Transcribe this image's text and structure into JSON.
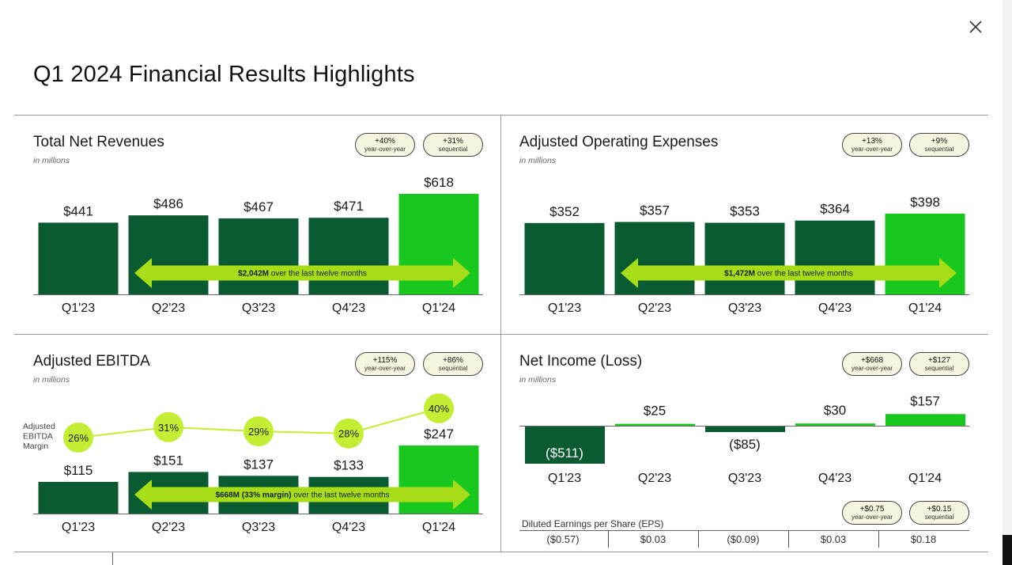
{
  "page": {
    "title": "Q1 2024 Financial Results Highlights",
    "close_icon": "close-icon"
  },
  "colors": {
    "dark_green": "#0a5a32",
    "bright_green": "#19c81e",
    "lime": "#a6dc18",
    "lime_bubble": "#c4ee34",
    "pill_bg": "#f5f6df"
  },
  "chart_data": [
    {
      "id": "revenue",
      "type": "bar",
      "title": "Total Net Revenues",
      "subtitle": "in millions",
      "categories": [
        "Q1'23",
        "Q2'23",
        "Q3'23",
        "Q4'23",
        "Q1'24"
      ],
      "values": [
        441,
        486,
        467,
        471,
        618
      ],
      "value_labels": [
        "$441",
        "$486",
        "$467",
        "$471",
        "$618"
      ],
      "ylim": [
        0,
        700
      ],
      "badges": [
        {
          "value": "+40%",
          "label": "year-over-year"
        },
        {
          "value": "+31%",
          "label": "sequential"
        }
      ],
      "annotation": {
        "bold": "$2,042M",
        "rest": " over the last twelve months"
      }
    },
    {
      "id": "opex",
      "type": "bar",
      "title": "Adjusted Operating Expenses",
      "subtitle": "in millions",
      "categories": [
        "Q1'23",
        "Q2'23",
        "Q3'23",
        "Q4'23",
        "Q1'24"
      ],
      "values": [
        352,
        357,
        353,
        364,
        398
      ],
      "value_labels": [
        "$352",
        "$357",
        "$353",
        "$364",
        "$398"
      ],
      "ylim": [
        0,
        450
      ],
      "badges": [
        {
          "value": "+13%",
          "label": "year-over-year"
        },
        {
          "value": "+9%",
          "label": "sequential"
        }
      ],
      "annotation": {
        "bold": "$1,472M",
        "rest": " over the last twelve months"
      }
    },
    {
      "id": "ebitda",
      "type": "bar",
      "title": "Adjusted EBITDA",
      "subtitle": "in millions",
      "categories": [
        "Q1'23",
        "Q2'23",
        "Q3'23",
        "Q4'23",
        "Q1'24"
      ],
      "values": [
        115,
        151,
        137,
        133,
        247
      ],
      "value_labels": [
        "$115",
        "$151",
        "$137",
        "$133",
        "$247"
      ],
      "ylim": [
        0,
        350
      ],
      "badges": [
        {
          "value": "+115%",
          "label": "year-over-year"
        },
        {
          "value": "+86%",
          "label": "sequential"
        }
      ],
      "annotation": {
        "bold": "$668M (33% margin)",
        "rest": " over the last twelve months"
      },
      "margin_series": {
        "name": "Adjusted EBITDA Margin",
        "values": [
          26,
          31,
          29,
          28,
          40
        ],
        "labels": [
          "26%",
          "31%",
          "29%",
          "28%",
          "40%"
        ]
      }
    },
    {
      "id": "netincome",
      "type": "bar",
      "title": "Net Income (Loss)",
      "subtitle": "in millions",
      "categories": [
        "Q1'23",
        "Q2'23",
        "Q3'23",
        "Q4'23",
        "Q1'24"
      ],
      "values": [
        -511,
        25,
        -85,
        30,
        157
      ],
      "value_labels": [
        "($511)",
        "$25",
        "($85)",
        "$30",
        "$157"
      ],
      "ylim": [
        -511,
        157
      ],
      "badges": [
        {
          "value": "+$668",
          "label": "year-over-year"
        },
        {
          "value": "+$127",
          "label": "sequential"
        }
      ],
      "eps": {
        "title": "Diluted Earnings per Share (EPS)",
        "values": [
          "($0.57)",
          "$0.03",
          "($0.09)",
          "$0.03",
          "$0.18"
        ],
        "badges": [
          {
            "value": "+$0.75",
            "label": "year-over-year"
          },
          {
            "value": "+$0.15",
            "label": "sequential"
          }
        ]
      }
    }
  ]
}
